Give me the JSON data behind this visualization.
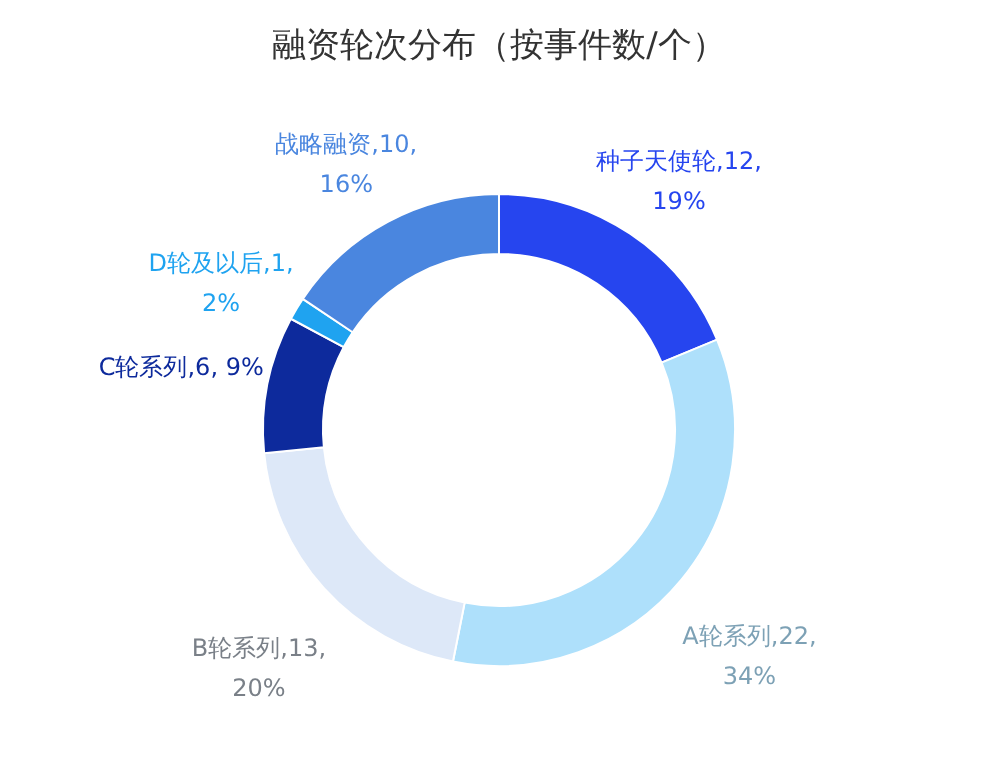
{
  "chart_data": {
    "type": "donut",
    "title": "融资轮次分布（按事件数/个）",
    "categories": [
      "种子天使轮",
      "A轮系列",
      "B轮系列",
      "C轮系列",
      "D轮及以后",
      "战略融资"
    ],
    "values": [
      12,
      22,
      13,
      6,
      1,
      10
    ],
    "colors": [
      "#2645ef",
      "#aee0fb",
      "#dde8f8",
      "#0d2a9c",
      "#1fa3f0",
      "#4a86df"
    ],
    "value_labels": [
      ",12,\n19%",
      ",22,\n34%",
      ",13,\n20%",
      ",6, 9%",
      ",1,\n2%",
      ",10,\n16%"
    ],
    "legend": false
  }
}
